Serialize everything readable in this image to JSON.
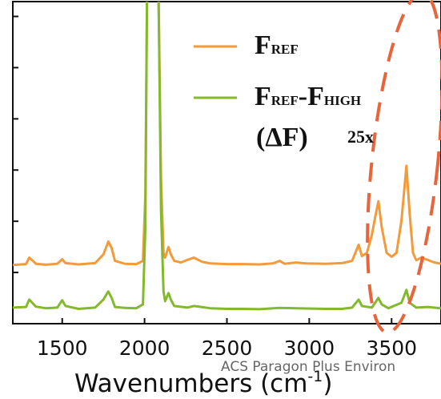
{
  "chart_data": {
    "type": "line",
    "title": "",
    "xlabel": "Wavenumbers (cm",
    "xlabel_exponent": "-1",
    "xlabel_close": ")",
    "ylabel": "",
    "xlim": [
      1200,
      3800
    ],
    "ylim": [
      0,
      100
    ],
    "x_ticks": [
      1500,
      2000,
      2500,
      3000,
      3500
    ],
    "x_tick_labels": [
      "1500",
      "2000",
      "2500",
      "3000",
      "3500"
    ],
    "grid": false,
    "legend_position": "top-right",
    "series": [
      {
        "name": "F",
        "name_subscript": "REF",
        "color": "#f39a3a",
        "points": [
          [
            1200,
            18.2
          ],
          [
            1280,
            18.5
          ],
          [
            1300,
            20.5
          ],
          [
            1320,
            19.6
          ],
          [
            1340,
            18.6
          ],
          [
            1400,
            18.3
          ],
          [
            1470,
            18.6
          ],
          [
            1500,
            20.0
          ],
          [
            1520,
            18.8
          ],
          [
            1600,
            18.4
          ],
          [
            1700,
            18.8
          ],
          [
            1750,
            21.5
          ],
          [
            1780,
            25.5
          ],
          [
            1800,
            23.5
          ],
          [
            1820,
            19.5
          ],
          [
            1880,
            18.6
          ],
          [
            1950,
            18.5
          ],
          [
            1990,
            19.5
          ],
          [
            2005,
            40
          ],
          [
            2015,
            102
          ],
          [
            2050,
            102
          ],
          [
            2085,
            102
          ],
          [
            2100,
            45
          ],
          [
            2115,
            22
          ],
          [
            2125,
            20.5
          ],
          [
            2145,
            23.8
          ],
          [
            2160,
            21.5
          ],
          [
            2180,
            19.5
          ],
          [
            2220,
            19.0
          ],
          [
            2260,
            19.8
          ],
          [
            2300,
            20.5
          ],
          [
            2350,
            19.2
          ],
          [
            2400,
            18.7
          ],
          [
            2500,
            18.5
          ],
          [
            2600,
            18.5
          ],
          [
            2700,
            18.4
          ],
          [
            2780,
            18.7
          ],
          [
            2820,
            19.5
          ],
          [
            2850,
            18.6
          ],
          [
            2920,
            19.0
          ],
          [
            2980,
            18.7
          ],
          [
            3100,
            18.6
          ],
          [
            3200,
            18.8
          ],
          [
            3260,
            19.5
          ],
          [
            3300,
            24.5
          ],
          [
            3320,
            21.0
          ],
          [
            3350,
            22.0
          ],
          [
            3380,
            27.5
          ],
          [
            3400,
            33.0
          ],
          [
            3420,
            38.0
          ],
          [
            3440,
            30.0
          ],
          [
            3470,
            22.0
          ],
          [
            3500,
            20.8
          ],
          [
            3530,
            22.0
          ],
          [
            3560,
            32.0
          ],
          [
            3590,
            49.0
          ],
          [
            3610,
            34.0
          ],
          [
            3630,
            22.0
          ],
          [
            3650,
            19.7
          ],
          [
            3680,
            20.5
          ],
          [
            3720,
            19.8
          ],
          [
            3760,
            19.0
          ],
          [
            3800,
            18.6
          ]
        ]
      },
      {
        "name": "F",
        "name_subscript": "REF",
        "name_mid": "-F",
        "name_subscript2": "HIGH",
        "color": "#84b92e",
        "points": [
          [
            1200,
            5.0
          ],
          [
            1280,
            5.2
          ],
          [
            1300,
            7.5
          ],
          [
            1320,
            6.4
          ],
          [
            1340,
            5.3
          ],
          [
            1400,
            4.8
          ],
          [
            1470,
            5.0
          ],
          [
            1500,
            7.3
          ],
          [
            1520,
            5.5
          ],
          [
            1600,
            4.6
          ],
          [
            1700,
            5.0
          ],
          [
            1750,
            7.5
          ],
          [
            1780,
            10.0
          ],
          [
            1800,
            8.0
          ],
          [
            1820,
            5.2
          ],
          [
            1880,
            4.9
          ],
          [
            1950,
            4.8
          ],
          [
            1990,
            6.0
          ],
          [
            2005,
            30
          ],
          [
            2015,
            102
          ],
          [
            2050,
            102
          ],
          [
            2085,
            102
          ],
          [
            2100,
            35
          ],
          [
            2115,
            10
          ],
          [
            2125,
            7.0
          ],
          [
            2145,
            9.5
          ],
          [
            2160,
            7.5
          ],
          [
            2180,
            5.5
          ],
          [
            2260,
            5.0
          ],
          [
            2300,
            5.5
          ],
          [
            2400,
            4.8
          ],
          [
            2500,
            4.6
          ],
          [
            2600,
            4.6
          ],
          [
            2700,
            4.5
          ],
          [
            2820,
            4.9
          ],
          [
            2920,
            4.8
          ],
          [
            3100,
            4.6
          ],
          [
            3200,
            4.6
          ],
          [
            3260,
            5.0
          ],
          [
            3300,
            7.5
          ],
          [
            3320,
            5.5
          ],
          [
            3380,
            5.0
          ],
          [
            3420,
            8.0
          ],
          [
            3440,
            6.0
          ],
          [
            3480,
            4.8
          ],
          [
            3560,
            6.5
          ],
          [
            3590,
            10.5
          ],
          [
            3610,
            6.5
          ],
          [
            3650,
            5.0
          ],
          [
            3720,
            5.2
          ],
          [
            3800,
            4.8
          ]
        ]
      }
    ],
    "annotations": [
      {
        "text": "(ΔF)",
        "type": "label"
      },
      {
        "text": "25x",
        "type": "label"
      },
      {
        "type": "dashed-ellipse",
        "color": "#e8643a",
        "center": [
          3580,
          50
        ],
        "radius_x": 200,
        "radius_y": 53
      }
    ]
  },
  "watermark": "ACS Paragon Plus Environ"
}
